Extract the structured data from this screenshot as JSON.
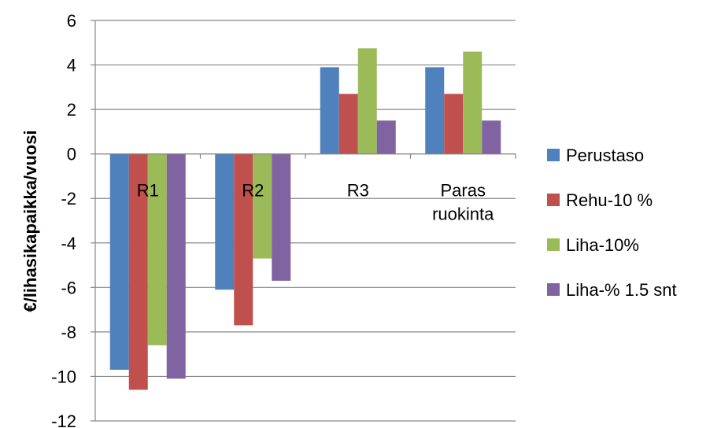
{
  "chart_data": {
    "type": "bar",
    "title": "",
    "xlabel": "",
    "ylabel": "€/lihasikapaikka/vuosi",
    "ylim": [
      -12,
      6
    ],
    "yticks": [
      "6",
      "4",
      "2",
      "0",
      "-2",
      "-4",
      "-6",
      "-8",
      "-10",
      "-12"
    ],
    "categories": [
      {
        "lines": [
          "R1"
        ]
      },
      {
        "lines": [
          "R2"
        ]
      },
      {
        "lines": [
          "R3"
        ]
      },
      {
        "lines": [
          "Paras",
          "ruokinta"
        ]
      }
    ],
    "grid": "horizontal",
    "legend_position": "right",
    "series": [
      {
        "name": "Perustaso",
        "color": "#4F81BD",
        "values": [
          -9.7,
          -6.1,
          3.9,
          3.9
        ]
      },
      {
        "name": "Rehu-10 %",
        "color": "#C0504D",
        "values": [
          -10.6,
          -7.7,
          2.7,
          2.7
        ]
      },
      {
        "name": "Liha-10%",
        "color": "#9BBB59",
        "values": [
          -8.6,
          -4.7,
          4.75,
          4.6
        ]
      },
      {
        "name": "Liha-% 1.5 snt",
        "color": "#8064A2",
        "values": [
          -10.1,
          -5.7,
          1.5,
          1.5
        ]
      }
    ]
  }
}
